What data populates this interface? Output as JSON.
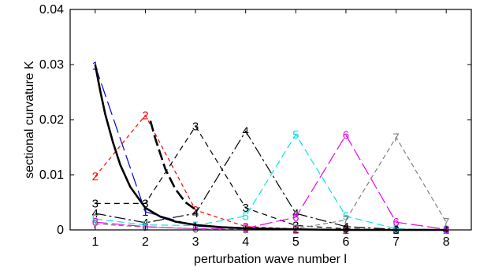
{
  "chart_data": {
    "type": "line",
    "xlabel": "perturbation wave number l",
    "ylabel": "sectional curvature  K",
    "xlim": [
      0.5,
      8.5
    ],
    "ylim": [
      0,
      0.04
    ],
    "x_ticks": [
      1,
      2,
      3,
      4,
      5,
      6,
      7,
      8
    ],
    "y_ticks": [
      0,
      0.01,
      0.02,
      0.03,
      0.04
    ],
    "y_tick_labels": [
      "0",
      "0.01",
      "0.02",
      "0.03",
      "0.04"
    ],
    "grid": false,
    "legend": "none",
    "series": [
      {
        "marker": "1",
        "color": "#0000cc",
        "dash": "18,6",
        "x": [
          1,
          2,
          3,
          4,
          5,
          6,
          7,
          8
        ],
        "y": [
          0.0298,
          0.0033,
          0.0007,
          0.0002,
          0.0001,
          0.0,
          0.0,
          0.0
        ]
      },
      {
        "marker": "2",
        "color": "#ff0000",
        "dash": "5,4",
        "x": [
          1,
          2,
          3,
          4,
          5,
          6,
          7,
          8
        ],
        "y": [
          0.0097,
          0.0208,
          0.0036,
          0.0006,
          0.0002,
          0.0,
          0.0,
          0.0
        ]
      },
      {
        "marker": "3",
        "color": "#000000",
        "dash": "7,5",
        "x": [
          1,
          2,
          3,
          4,
          5,
          6,
          7,
          8
        ],
        "y": [
          0.0048,
          0.0048,
          0.0188,
          0.004,
          0.0008,
          0.0002,
          0.0,
          0.0
        ]
      },
      {
        "marker": "4",
        "color": "#000000",
        "dash": "14,4,3,4",
        "x": [
          1,
          2,
          3,
          4,
          5,
          6,
          7,
          8
        ],
        "y": [
          0.003,
          0.0013,
          0.003,
          0.0179,
          0.003,
          0.0006,
          0.0001,
          0.0
        ]
      },
      {
        "marker": "5",
        "color": "#00e5e5",
        "dash": "9,5",
        "x": [
          1,
          2,
          3,
          4,
          5,
          6,
          7,
          8
        ],
        "y": [
          0.002,
          0.0009,
          0.0008,
          0.0025,
          0.0173,
          0.0025,
          0.0002,
          0.0
        ]
      },
      {
        "marker": "6",
        "color": "#ee00ee",
        "dash": "16,5",
        "x": [
          1,
          2,
          3,
          4,
          5,
          6,
          7,
          8
        ],
        "y": [
          0.0014,
          0.0006,
          0.0002,
          0.0003,
          0.0023,
          0.0172,
          0.0014,
          0.0001
        ]
      },
      {
        "marker": "7",
        "color": "#808080",
        "dash": "6,4",
        "x": [
          1,
          2,
          3,
          4,
          5,
          6,
          7,
          8
        ],
        "y": [
          0.0011,
          0.0005,
          0.0002,
          0.0001,
          0.0002,
          0.0018,
          0.0168,
          0.0014
        ]
      }
    ],
    "envelope": {
      "color": "#000000",
      "x": [
        1,
        1.1,
        1.2,
        1.35,
        1.5,
        1.7,
        2,
        2.3,
        2.6,
        3,
        3.5,
        4,
        5,
        6,
        7,
        8
      ],
      "y": [
        0.03,
        0.0252,
        0.021,
        0.016,
        0.0118,
        0.0078,
        0.004,
        0.0024,
        0.0015,
        0.0009,
        0.0005,
        0.0003,
        0.0001,
        0.0,
        0.0,
        0.0
      ]
    },
    "envelope_segment": {
      "color": "#000000",
      "x": [
        2.1,
        2.2,
        2.4,
        2.6,
        2.8,
        3
      ],
      "y": [
        0.0198,
        0.0165,
        0.011,
        0.0074,
        0.005,
        0.0037
      ]
    }
  }
}
